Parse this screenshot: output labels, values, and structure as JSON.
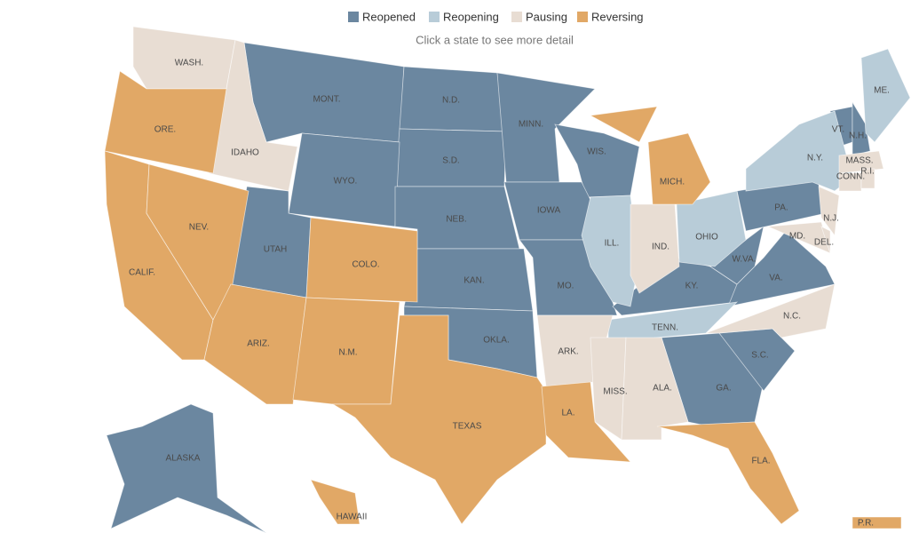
{
  "legend": [
    {
      "label": "Reopened",
      "color": "#6b87a0",
      "states": [
        "MONT.",
        "N.D.",
        "S.D.",
        "WYO.",
        "NEB.",
        "KAN.",
        "OKLA.",
        "UTAH",
        "MINN.",
        "WIS.",
        "IOWA",
        "MO.",
        "KY.",
        "W.VA.",
        "VA.",
        "PA.",
        "GA.",
        "S.C.",
        "VT.",
        "N.H.",
        "ALASKA"
      ]
    },
    {
      "label": "Reopening",
      "color": "#b8ccd8",
      "states": [
        "ME.",
        "N.Y.",
        "ILL.",
        "OHIO",
        "TENN."
      ]
    },
    {
      "label": "Pausing",
      "color": "#e8ddd3",
      "states": [
        "WASH.",
        "IDAHO",
        "MASS.",
        "CONN.",
        "R.I.",
        "N.J.",
        "MD.",
        "DEL.",
        "IND.",
        "N.C.",
        "ARK.",
        "MISS.",
        "ALA."
      ]
    },
    {
      "label": "Reversing",
      "color": "#e1a866",
      "states": [
        "ORE.",
        "CALIF.",
        "NEV.",
        "ARIZ.",
        "COLO.",
        "N.M.",
        "TEXAS",
        "LA.",
        "MICH.",
        "FLA.",
        "HAWAII",
        "P.R."
      ]
    }
  ],
  "instruction": "Click a state to see more detail"
}
